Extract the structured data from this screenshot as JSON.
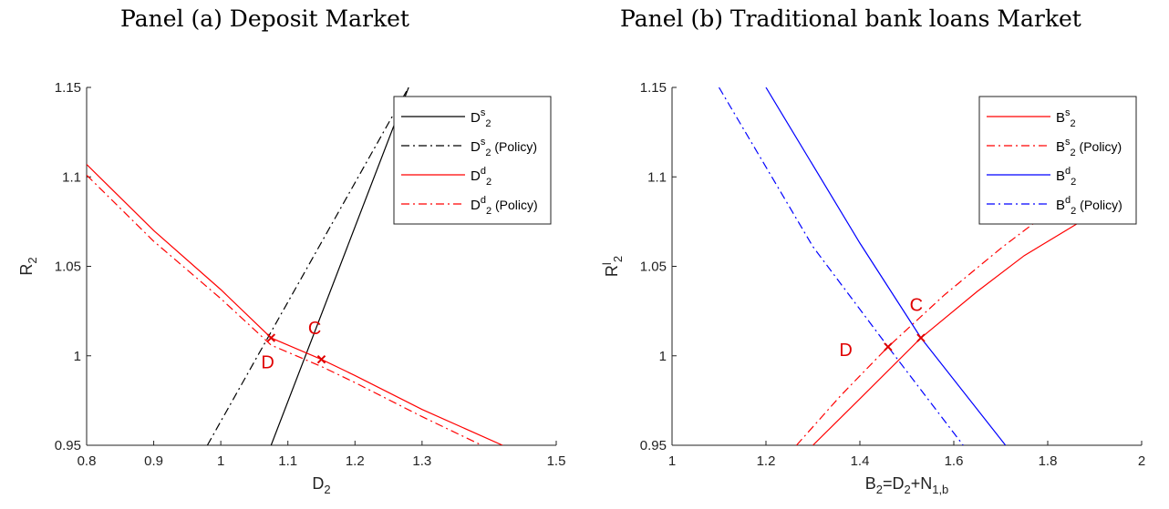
{
  "titles": {
    "panel_a": "Panel (a) Deposit Market",
    "panel_b": "Panel (b) Traditional bank loans Market"
  },
  "colors": {
    "black": "#000000",
    "red": "#ff0000",
    "blue": "#0000ff",
    "marker": "#e00000"
  },
  "chart_data": [
    {
      "type": "line",
      "title": "Panel (a) Deposit Market",
      "xlabel": "D",
      "xlabel_sub": "2",
      "ylabel": "R",
      "ylabel_sub": "2",
      "xlim": [
        0.8,
        1.5
      ],
      "ylim": [
        0.95,
        1.15
      ],
      "xticks": [
        "0.8",
        "0.9",
        "1",
        "1.1",
        "1.2",
        "1.3",
        "1.5"
      ],
      "xtick_values": [
        0.8,
        0.9,
        1.0,
        1.1,
        1.2,
        1.3,
        1.5
      ],
      "yticks": [
        "0.95",
        "1",
        "1.05",
        "1.1",
        "1.15"
      ],
      "ytick_values": [
        0.95,
        1.0,
        1.05,
        1.1,
        1.15
      ],
      "legend_position": "top-right",
      "series": [
        {
          "name": "D",
          "sub": "2",
          "sup": "s",
          "suffix": "",
          "color": "#000000",
          "dash": "solid",
          "x": [
            1.075,
            1.28
          ],
          "y": [
            0.95,
            1.15
          ]
        },
        {
          "name": "D",
          "sub": "2",
          "sup": "s",
          "suffix": " (Policy)",
          "color": "#000000",
          "dash": "dashdot",
          "x": [
            0.98,
            1.28
          ],
          "y": [
            0.95,
            1.15
          ]
        },
        {
          "name": "D",
          "sub": "2",
          "sup": "d",
          "suffix": "",
          "color": "#ff0000",
          "dash": "solid",
          "x": [
            0.8,
            0.9,
            1.0,
            1.075,
            1.15,
            1.2,
            1.3,
            1.42
          ],
          "y": [
            1.107,
            1.07,
            1.037,
            1.01,
            0.998,
            0.989,
            0.97,
            0.95
          ]
        },
        {
          "name": "D",
          "sub": "2",
          "sup": "d",
          "suffix": " (Policy)",
          "color": "#ff0000",
          "dash": "dashdot",
          "x": [
            0.8,
            0.9,
            1.0,
            1.075,
            1.15,
            1.2,
            1.3,
            1.4
          ],
          "y": [
            1.101,
            1.064,
            1.032,
            1.006,
            0.994,
            0.985,
            0.966,
            0.948
          ]
        }
      ],
      "points": [
        {
          "label": "C",
          "x": 1.15,
          "y": 0.998,
          "label_x": 1.14,
          "label_y": 1.012
        },
        {
          "label": "D",
          "x": 1.075,
          "y": 1.01,
          "label_x": 1.07,
          "label_y": 0.993
        }
      ]
    },
    {
      "type": "line",
      "title": "Panel (b) Traditional bank loans Market",
      "xlabel": "B",
      "xlabel_sub": "2",
      "xlabel_rest": "=D",
      "xlabel_rest_sub": "2",
      "xlabel_tail": "+N",
      "xlabel_tail_sub": "1,b",
      "ylabel": "R",
      "ylabel_sub": "2",
      "ylabel_sup": "l",
      "xlim": [
        1.0,
        2.0
      ],
      "ylim": [
        0.95,
        1.15
      ],
      "xticks": [
        "1",
        "1.2",
        "1.4",
        "1.6",
        "1.8",
        "2"
      ],
      "xtick_values": [
        1.0,
        1.2,
        1.4,
        1.6,
        1.8,
        2.0
      ],
      "yticks": [
        "0.95",
        "1",
        "1.05",
        "1.1",
        "1.15"
      ],
      "ytick_values": [
        0.95,
        1.0,
        1.05,
        1.1,
        1.15
      ],
      "legend_position": "top-right",
      "series": [
        {
          "name": "B",
          "sub": "2",
          "sup": "s",
          "suffix": "",
          "color": "#ff0000",
          "dash": "solid",
          "x": [
            1.3,
            1.4,
            1.53,
            1.65,
            1.75,
            1.87
          ],
          "y": [
            0.95,
            0.976,
            1.01,
            1.036,
            1.056,
            1.075
          ]
        },
        {
          "name": "B",
          "sub": "2",
          "sup": "s",
          "suffix": " (Policy)",
          "color": "#ff0000",
          "dash": "dashdot",
          "x": [
            1.265,
            1.36,
            1.46,
            1.58,
            1.7,
            1.85
          ],
          "y": [
            0.95,
            0.978,
            1.005,
            1.034,
            1.06,
            1.09
          ]
        },
        {
          "name": "B",
          "sub": "2",
          "sup": "d",
          "suffix": "",
          "color": "#0000ff",
          "dash": "solid",
          "x": [
            1.2,
            1.4,
            1.53,
            1.71
          ],
          "y": [
            1.15,
            1.063,
            1.01,
            0.95
          ]
        },
        {
          "name": "B",
          "sub": "2",
          "sup": "d",
          "suffix": " (Policy)",
          "color": "#0000ff",
          "dash": "dashdot",
          "x": [
            1.1,
            1.3,
            1.46,
            1.62
          ],
          "y": [
            1.15,
            1.061,
            1.005,
            0.95
          ]
        }
      ],
      "points": [
        {
          "label": "C",
          "x": 1.53,
          "y": 1.01,
          "label_x": 1.52,
          "label_y": 1.025
        },
        {
          "label": "D",
          "x": 1.46,
          "y": 1.005,
          "label_x": 1.37,
          "label_y": 1.0
        }
      ]
    }
  ]
}
